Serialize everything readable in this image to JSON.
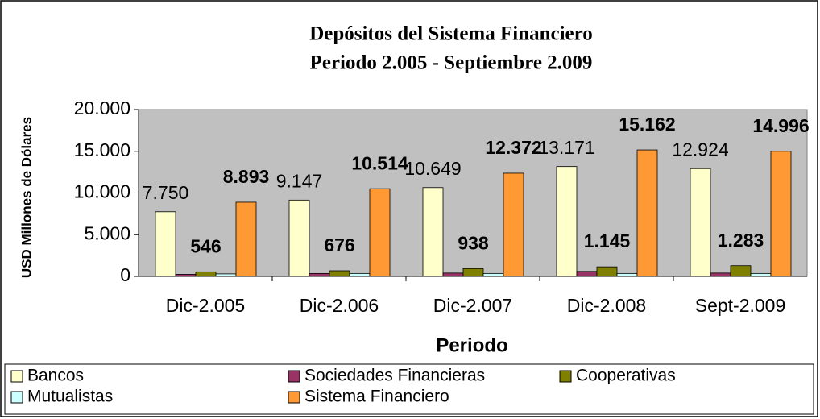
{
  "chart_data": {
    "type": "bar",
    "title": "Depósitos del Sistema Financiero",
    "subtitle": "Periodo 2.005 - Septiembre 2.009",
    "x_label": "Periodo",
    "y_label": "USD Millones de Dólares",
    "categories": [
      "Dic-2.005",
      "Dic-2.006",
      "Dic-2.007",
      "Dic-2.008",
      "Sept-2.009"
    ],
    "series": [
      {
        "name": "Bancos",
        "color": "#ffffcc",
        "values": [
          7750,
          9147,
          10649,
          13171,
          12924
        ],
        "value_labels": [
          "7.750",
          "9.147",
          "10.649",
          "13.171",
          "12.924"
        ]
      },
      {
        "name": "Sociedades Financieras",
        "color": "#993366",
        "values": [
          250,
          350,
          400,
          600,
          400
        ]
      },
      {
        "name": "Cooperativas",
        "color": "#808000",
        "values": [
          546,
          676,
          938,
          1145,
          1283
        ],
        "value_labels": [
          "546",
          "676",
          "938",
          "1.145",
          "1.283"
        ]
      },
      {
        "name": "Mutualistas",
        "color": "#ccffff",
        "values": [
          300,
          350,
          350,
          350,
          350
        ]
      },
      {
        "name": "Sistema Financiero",
        "color": "#ff9933",
        "values": [
          8893,
          10514,
          12372,
          15162,
          14996
        ],
        "value_labels": [
          "8.893",
          "10.514",
          "12.372",
          "15.162",
          "14.996"
        ]
      }
    ],
    "ylim": [
      0,
      20000
    ],
    "yticks": [
      0,
      {
        "value": 5000,
        "label": "5.000"
      },
      {
        "value": 10000,
        "label": "10.000"
      },
      {
        "value": 15000,
        "label": "15.000"
      },
      {
        "value": 20000,
        "label": "20.000"
      }
    ],
    "grid": false,
    "legend": "bottom"
  }
}
